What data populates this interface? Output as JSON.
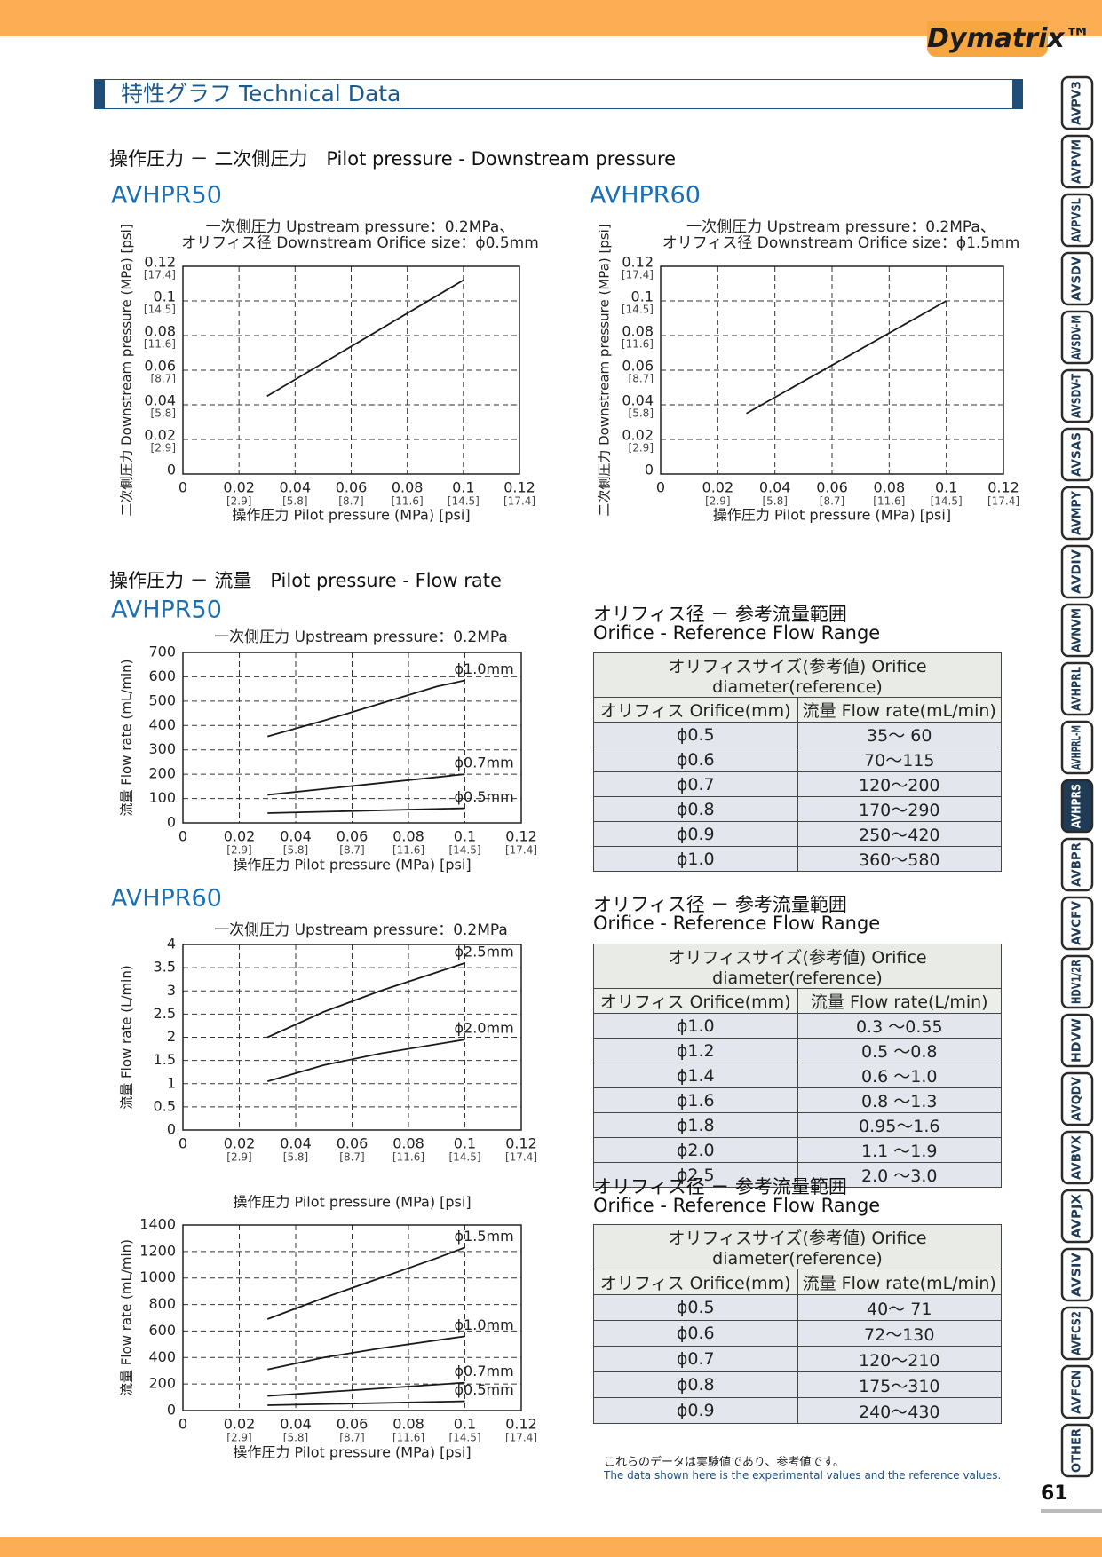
{
  "header": {
    "logo": "Dymatrix™"
  },
  "section_title": "特性グラフ  Technical Data",
  "headings": [
    "操作圧力 － 二次側圧力　Pilot pressure - Downstream pressure",
    "操作圧力 － 流量　Pilot pressure - Flow rate"
  ],
  "chart_data": [
    {
      "type": "line",
      "title": "AVHPR50",
      "subtitle": [
        "一次側圧力  Upstream pressure：0.2MPa、",
        "オリフィス径  Downstream Orifice size：ϕ0.5mm"
      ],
      "x_label": "操作圧力  Pilot pressure (MPa)  [psi]",
      "y_label": "二次側圧力 Downstream pressure (MPa)  [psi]",
      "xlim": [
        0,
        0.12
      ],
      "xticks": [
        0,
        0.02,
        0.04,
        0.06,
        0.08,
        0.1,
        0.12
      ],
      "xticks_psi": [
        {
          "value": 0.02,
          "label": "[2.9]"
        },
        {
          "value": 0.04,
          "label": "[5.8]"
        },
        {
          "value": 0.06,
          "label": "[8.7]"
        },
        {
          "value": 0.08,
          "label": "[11.6]"
        },
        {
          "value": 0.1,
          "label": "[14.5]"
        },
        {
          "value": 0.12,
          "label": "[17.4]"
        }
      ],
      "ylim": [
        0,
        0.12
      ],
      "yticks": [
        0,
        0.02,
        0.04,
        0.06,
        0.08,
        0.1,
        0.12
      ],
      "yticks_psi": [
        {
          "value": 0.02,
          "label": "[2.9]"
        },
        {
          "value": 0.04,
          "label": "[5.8]"
        },
        {
          "value": 0.06,
          "label": "[8.7]"
        },
        {
          "value": 0.08,
          "label": "[11.6]"
        },
        {
          "value": 0.1,
          "label": "[14.5]"
        },
        {
          "value": 0.12,
          "label": "[17.4]"
        }
      ],
      "grid": true,
      "series": [
        {
          "color": "#1a1a1a",
          "x": [
            0.03,
            0.1
          ],
          "values": [
            0.045,
            0.112
          ]
        }
      ]
    },
    {
      "type": "line",
      "title": "AVHPR60",
      "subtitle": [
        "一次側圧力  Upstream pressure：0.2MPa、",
        "オリフィス径  Downstream Orifice size：ϕ1.5mm"
      ],
      "x_label": "操作圧力  Pilot pressure (MPa)  [psi]",
      "y_label": "二次側圧力 Downstream pressure (MPa)  [psi]",
      "xlim": [
        0,
        0.12
      ],
      "xticks": [
        0,
        0.02,
        0.04,
        0.06,
        0.08,
        0.1,
        0.12
      ],
      "xticks_psi": [
        {
          "value": 0.02,
          "label": "[2.9]"
        },
        {
          "value": 0.04,
          "label": "[5.8]"
        },
        {
          "value": 0.06,
          "label": "[8.7]"
        },
        {
          "value": 0.08,
          "label": "[11.6]"
        },
        {
          "value": 0.1,
          "label": "[14.5]"
        },
        {
          "value": 0.12,
          "label": "[17.4]"
        }
      ],
      "ylim": [
        0,
        0.12
      ],
      "yticks": [
        0,
        0.02,
        0.04,
        0.06,
        0.08,
        0.1,
        0.12
      ],
      "yticks_psi": [
        {
          "value": 0.02,
          "label": "[2.9]"
        },
        {
          "value": 0.04,
          "label": "[5.8]"
        },
        {
          "value": 0.06,
          "label": "[8.7]"
        },
        {
          "value": 0.08,
          "label": "[11.6]"
        },
        {
          "value": 0.1,
          "label": "[14.5]"
        },
        {
          "value": 0.12,
          "label": "[17.4]"
        }
      ],
      "grid": true,
      "series": [
        {
          "color": "#1a1a1a",
          "x": [
            0.03,
            0.1
          ],
          "values": [
            0.035,
            0.1
          ]
        }
      ]
    },
    {
      "type": "line",
      "title": "AVHPR50",
      "subtitle": [
        "一次側圧力  Upstream pressure：0.2MPa"
      ],
      "x_label": "操作圧力  Pilot pressure (MPa)  [psi]",
      "y_label": "流量 Flow rate  (mL/min)",
      "xlim": [
        0,
        0.12
      ],
      "xticks": [
        0,
        0.02,
        0.04,
        0.06,
        0.08,
        0.1,
        0.12
      ],
      "xticks_psi": [
        {
          "value": 0.02,
          "label": "[2.9]"
        },
        {
          "value": 0.04,
          "label": "[5.8]"
        },
        {
          "value": 0.06,
          "label": "[8.7]"
        },
        {
          "value": 0.08,
          "label": "[11.6]"
        },
        {
          "value": 0.1,
          "label": "[14.5]"
        },
        {
          "value": 0.12,
          "label": "[17.4]"
        }
      ],
      "ylim": [
        0,
        700
      ],
      "yticks": [
        0,
        100,
        200,
        300,
        400,
        500,
        600,
        700
      ],
      "grid": true,
      "series": [
        {
          "name": "ϕ1.0mm",
          "color": "#1a1a1a",
          "x": [
            0.03,
            0.05,
            0.07,
            0.09,
            0.1
          ],
          "values": [
            355,
            420,
            490,
            560,
            585
          ]
        },
        {
          "name": "ϕ0.7mm",
          "color": "#1a1a1a",
          "x": [
            0.03,
            0.1
          ],
          "values": [
            115,
            200
          ]
        },
        {
          "name": "ϕ0.5mm",
          "color": "#1a1a1a",
          "x": [
            0.03,
            0.1
          ],
          "values": [
            40,
            60
          ]
        }
      ]
    },
    {
      "type": "line",
      "title": "AVHPR60",
      "subtitle": [
        "一次側圧力  Upstream pressure：0.2MPa"
      ],
      "x_label": "操作圧力  Pilot pressure (MPa)  [psi]",
      "y_label": "流量 Flow rate  (L/min)",
      "xlim": [
        0,
        0.12
      ],
      "xticks": [
        0,
        0.02,
        0.04,
        0.06,
        0.08,
        0.1,
        0.12
      ],
      "xticks_psi": [
        {
          "value": 0.02,
          "label": "[2.9]"
        },
        {
          "value": 0.04,
          "label": "[5.8]"
        },
        {
          "value": 0.06,
          "label": "[8.7]"
        },
        {
          "value": 0.08,
          "label": "[11.6]"
        },
        {
          "value": 0.1,
          "label": "[14.5]"
        },
        {
          "value": 0.12,
          "label": "[17.4]"
        }
      ],
      "ylim": [
        0,
        4
      ],
      "yticks": [
        0,
        0.5,
        1,
        1.5,
        2,
        2.5,
        3,
        3.5,
        4
      ],
      "grid": true,
      "series": [
        {
          "name": "ϕ2.5mm",
          "color": "#1a1a1a",
          "x": [
            0.03,
            0.05,
            0.07,
            0.09,
            0.1
          ],
          "values": [
            2.0,
            2.55,
            3.0,
            3.4,
            3.6
          ]
        },
        {
          "name": "ϕ2.0mm",
          "color": "#1a1a1a",
          "x": [
            0.03,
            0.05,
            0.07,
            0.1
          ],
          "values": [
            1.05,
            1.4,
            1.65,
            1.95
          ]
        }
      ]
    },
    {
      "type": "line",
      "x_label": "操作圧力  Pilot pressure (MPa)  [psi]",
      "y_label": "流量 Flow rate  (mL/min)",
      "xlim": [
        0,
        0.12
      ],
      "xticks": [
        0,
        0.02,
        0.04,
        0.06,
        0.08,
        0.1,
        0.12
      ],
      "xticks_psi": [
        {
          "value": 0.02,
          "label": "[2.9]"
        },
        {
          "value": 0.04,
          "label": "[5.8]"
        },
        {
          "value": 0.06,
          "label": "[8.7]"
        },
        {
          "value": 0.08,
          "label": "[11.6]"
        },
        {
          "value": 0.1,
          "label": "[14.5]"
        },
        {
          "value": 0.12,
          "label": "[17.4]"
        }
      ],
      "ylim": [
        0,
        1400
      ],
      "yticks": [
        0,
        200,
        400,
        600,
        800,
        1000,
        1200,
        1400
      ],
      "grid": true,
      "series": [
        {
          "name": "ϕ1.5mm",
          "color": "#1a1a1a",
          "x": [
            0.03,
            0.05,
            0.07,
            0.09,
            0.1
          ],
          "values": [
            690,
            850,
            1000,
            1150,
            1230
          ]
        },
        {
          "name": "ϕ1.0mm",
          "color": "#1a1a1a",
          "x": [
            0.03,
            0.05,
            0.07,
            0.1
          ],
          "values": [
            310,
            400,
            470,
            560
          ]
        },
        {
          "name": "ϕ0.7mm",
          "color": "#1a1a1a",
          "x": [
            0.03,
            0.1
          ],
          "values": [
            110,
            210
          ]
        },
        {
          "name": "ϕ0.5mm",
          "color": "#1a1a1a",
          "x": [
            0.03,
            0.1
          ],
          "values": [
            40,
            70
          ]
        }
      ]
    }
  ],
  "tables": [
    {
      "title": "オリフィス径 － 参考流量範囲",
      "subtitle": "Orifice - Reference Flow Range",
      "caption": "オリフィスサイズ(参考値) Orifice diameter(reference)",
      "columns": [
        "オリフィス Orifice(mm)",
        "流量 Flow rate(mL/min)"
      ],
      "rows": [
        [
          "ϕ0.5",
          "35～ 60"
        ],
        [
          "ϕ0.6",
          "70～115"
        ],
        [
          "ϕ0.7",
          "120～200"
        ],
        [
          "ϕ0.8",
          "170～290"
        ],
        [
          "ϕ0.9",
          "250～420"
        ],
        [
          "ϕ1.0",
          "360～580"
        ]
      ]
    },
    {
      "title": "オリフィス径 － 参考流量範囲",
      "subtitle": "Orifice - Reference Flow Range",
      "caption": "オリフィスサイズ(参考値) Orifice diameter(reference)",
      "columns": [
        "オリフィス Orifice(mm)",
        "流量 Flow rate(L/min)"
      ],
      "rows": [
        [
          "ϕ1.0",
          "0.3 ～0.55"
        ],
        [
          "ϕ1.2",
          "0.5 ～0.8"
        ],
        [
          "ϕ1.4",
          "0.6 ～1.0"
        ],
        [
          "ϕ1.6",
          "0.8 ～1.3"
        ],
        [
          "ϕ1.8",
          "0.95～1.6"
        ],
        [
          "ϕ2.0",
          "1.1 ～1.9"
        ],
        [
          "ϕ2.5",
          "2.0 ～3.0"
        ]
      ]
    },
    {
      "title": "オリフィス径 － 参考流量範囲",
      "subtitle": "Orifice - Reference Flow Range",
      "caption": "オリフィスサイズ(参考値) Orifice diameter(reference)",
      "columns": [
        "オリフィス Orifice(mm)",
        "流量 Flow rate(mL/min)"
      ],
      "rows": [
        [
          "ϕ0.5",
          "40～ 71"
        ],
        [
          "ϕ0.6",
          "72～130"
        ],
        [
          "ϕ0.7",
          "120～210"
        ],
        [
          "ϕ0.8",
          "175～310"
        ],
        [
          "ϕ0.9",
          "240～430"
        ]
      ]
    }
  ],
  "footnote": [
    "これらのデータは実験値であり、参考値です。",
    "The data shown here is the experimental values and the reference values."
  ],
  "page_number": "61",
  "side_tabs": [
    {
      "label": "AVPV3"
    },
    {
      "label": "AVPVM"
    },
    {
      "label": "AVPVSL"
    },
    {
      "label": "AVSDV"
    },
    {
      "label": "AVSDV-M"
    },
    {
      "label": "AVSDV-T"
    },
    {
      "label": "AVSAS"
    },
    {
      "label": "AVMPY"
    },
    {
      "label": "AVDIV"
    },
    {
      "label": "AVNVM"
    },
    {
      "label": "AVHPRL"
    },
    {
      "label": "AVHPRL-M"
    },
    {
      "label": "AVHPRS",
      "active": true
    },
    {
      "label": "AVBPR"
    },
    {
      "label": "AVCFV"
    },
    {
      "label": "HDV1/2R"
    },
    {
      "label": "HDVW"
    },
    {
      "label": "AVQDV"
    },
    {
      "label": "AVBVX"
    },
    {
      "label": "AVPJX"
    },
    {
      "label": "AVSIV"
    },
    {
      "label": "AVFCS2"
    },
    {
      "label": "AVFCN"
    },
    {
      "label": "OTHER"
    }
  ]
}
